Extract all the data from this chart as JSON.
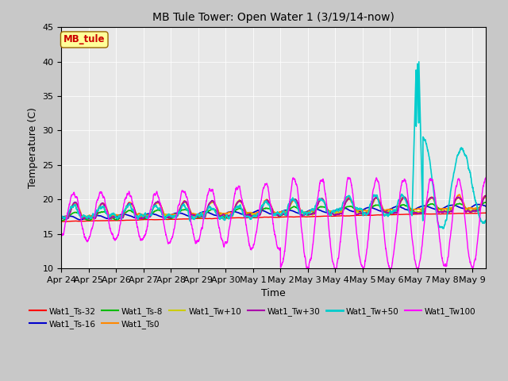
{
  "title": "MB Tule Tower: Open Water 1 (3/19/14-now)",
  "xlabel": "Time",
  "ylabel": "Temperature (C)",
  "ylim": [
    10,
    45
  ],
  "yticks": [
    10,
    15,
    20,
    25,
    30,
    35,
    40,
    45
  ],
  "xlim_days": [
    0,
    15.5
  ],
  "x_tick_labels": [
    "Apr 24",
    "Apr 25",
    "Apr 26",
    "Apr 27",
    "Apr 28",
    "Apr 29",
    "Apr 30",
    "May 1",
    "May 2",
    "May 3",
    "May 4",
    "May 5",
    "May 6",
    "May 7",
    "May 8",
    "May 9"
  ],
  "legend_box_label": "MB_tule",
  "legend_box_color": "#cc0000",
  "legend_box_bg": "#ffff99",
  "fig_bg": "#c8c8c8",
  "plot_bg": "#e8e8e8",
  "series": {
    "Wat1_Ts-32": {
      "color": "#ff0000",
      "lw": 1.0
    },
    "Wat1_Ts-16": {
      "color": "#0000cc",
      "lw": 1.2
    },
    "Wat1_Ts-8": {
      "color": "#00bb00",
      "lw": 1.2
    },
    "Wat1_Ts0": {
      "color": "#ff8800",
      "lw": 1.2
    },
    "Wat1_Tw+10": {
      "color": "#cccc00",
      "lw": 1.2
    },
    "Wat1_Tw+30": {
      "color": "#aa00aa",
      "lw": 1.2
    },
    "Wat1_Tw+50": {
      "color": "#00cccc",
      "lw": 1.2
    },
    "Wat1_Tw100": {
      "color": "#ff00ff",
      "lw": 1.0
    }
  }
}
